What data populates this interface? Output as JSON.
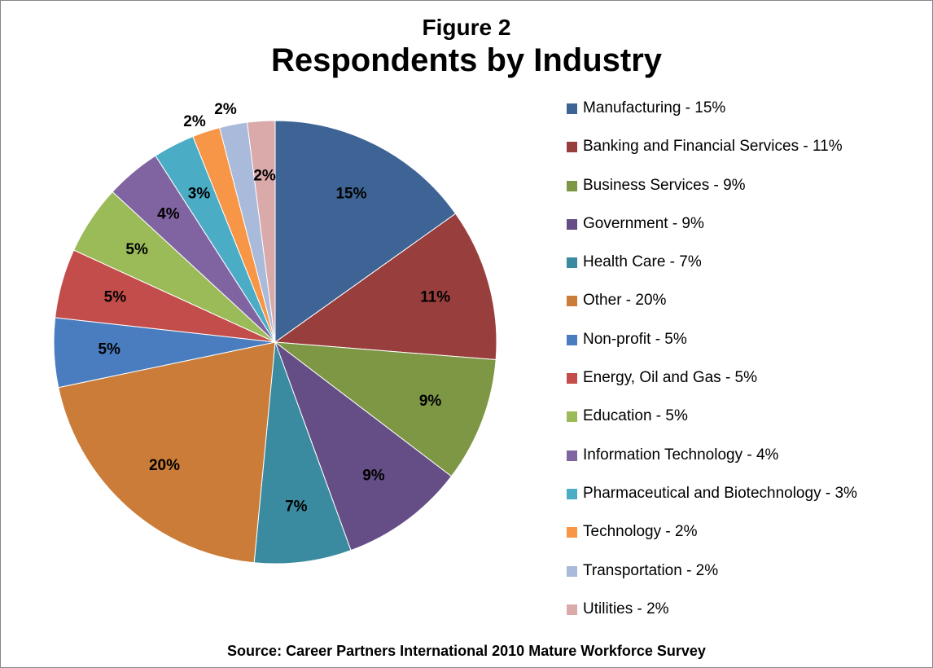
{
  "figure_label": "Figure 2",
  "source": "Source:  Career Partners International 2010 Mature Workforce Survey",
  "chart_data": {
    "type": "pie",
    "title": "Respondents by Industry",
    "slices": [
      {
        "label": "Manufacturing",
        "value": 15,
        "data_label": "15%",
        "legend": "Manufacturing - 15%",
        "color": "#3E6496"
      },
      {
        "label": "Banking and Financial Services",
        "value": 11,
        "data_label": "11%",
        "legend": "Banking and Financial Services - 11%",
        "color": "#983F3D"
      },
      {
        "label": "Business Services",
        "value": 9,
        "data_label": "9%",
        "legend": "Business Services - 9%",
        "color": "#7D9744"
      },
      {
        "label": "Government",
        "value": 9,
        "data_label": "9%",
        "legend": "Government - 9%",
        "color": "#654E85"
      },
      {
        "label": "Health Care",
        "value": 7,
        "data_label": "7%",
        "legend": "Health Care - 7%",
        "color": "#3A8AA0"
      },
      {
        "label": "Other",
        "value": 20,
        "data_label": "20%",
        "legend": "Other - 20%",
        "color": "#CB7C38"
      },
      {
        "label": "Non-profit",
        "value": 5,
        "data_label": "5%",
        "legend": "Non-profit - 5%",
        "color": "#4A7DBF"
      },
      {
        "label": "Energy, Oil and Gas",
        "value": 5,
        "data_label": "5%",
        "legend": "Energy, Oil and Gas - 5%",
        "color": "#C24D4A"
      },
      {
        "label": "Education",
        "value": 5,
        "data_label": "5%",
        "legend": "Education - 5%",
        "color": "#9BBB59"
      },
      {
        "label": "Information Technology",
        "value": 4,
        "data_label": "4%",
        "legend": "Information Technology - 4%",
        "color": "#8064A2"
      },
      {
        "label": "Pharmaceutical and Biotechnology",
        "value": 3,
        "data_label": "3%",
        "legend": "Pharmaceutical and Biotechnology - 3%",
        "color": "#4BACC6"
      },
      {
        "label": "Technology",
        "value": 2,
        "data_label": "2%",
        "legend": "Technology - 2%",
        "color": "#F79646"
      },
      {
        "label": "Transportation",
        "value": 2,
        "data_label": "2%",
        "legend": "Transportation - 2%",
        "color": "#A9BADA"
      },
      {
        "label": "Utilities",
        "value": 2,
        "data_label": "2%",
        "legend": "Utilities - 2%",
        "color": "#DAA9A9"
      }
    ],
    "legend_position": "right"
  }
}
